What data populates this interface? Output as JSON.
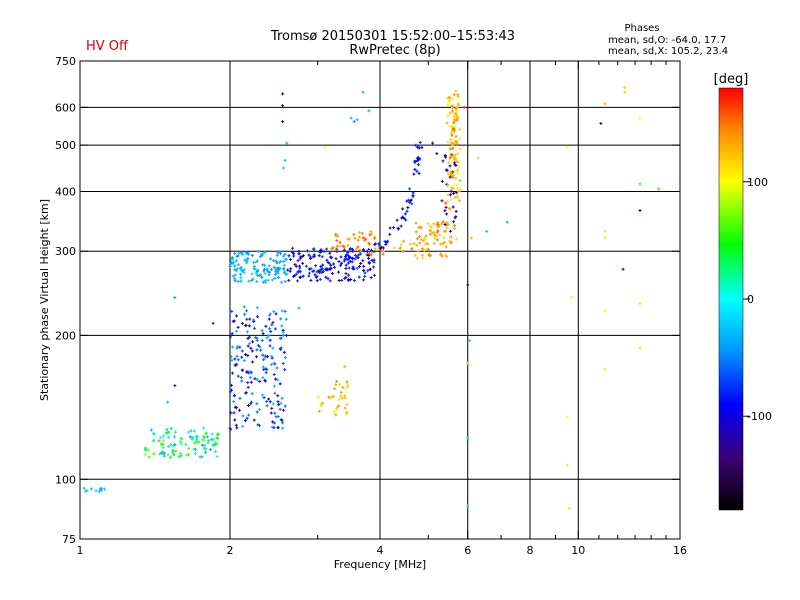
{
  "header": {
    "hv_status": "HV Off",
    "hv_color": "#e00000",
    "title_line1": "Tromsø 20150301 15:52:00–15:53:43",
    "title_line2": "RwPretec (8p)",
    "stats_heading": "Phases",
    "stats_line1": "mean, sd,O: -64.0, 17.7",
    "stats_line2": "mean, sd,X: 105.2, 23.4"
  },
  "colorbar": {
    "label": "[deg]",
    "range": [
      -180,
      180
    ],
    "ticks": [
      {
        "value": 100,
        "label": "100"
      },
      {
        "value": 0,
        "label": "0"
      },
      {
        "value": -100,
        "label": "-100"
      }
    ]
  },
  "chart_data": {
    "type": "scatter",
    "title": "Tromsø 20150301 15:52:00–15:53:43",
    "subtitle": "RwPretec (8p)",
    "xlabel": "Frequency [MHz]",
    "ylabel": "Stationary phase Virtual Height [km]",
    "x_scale": "log",
    "y_scale": "log",
    "xlim": [
      1,
      16
    ],
    "ylim": [
      75,
      750
    ],
    "grid": true,
    "x_ticks": [
      {
        "value": 1,
        "label": "1"
      },
      {
        "value": 2,
        "label": "2"
      },
      {
        "value": 4,
        "label": "4"
      },
      {
        "value": 6,
        "label": "6"
      },
      {
        "value": 8,
        "label": "8"
      },
      {
        "value": 10,
        "label": "10"
      },
      {
        "value": 16,
        "label": "16"
      }
    ],
    "x_minor_ticks": [
      3,
      5,
      7,
      9,
      11,
      12,
      13,
      14,
      15
    ],
    "x_gridlines": [
      2,
      4,
      6,
      8,
      10
    ],
    "y_ticks": [
      {
        "value": 75,
        "label": "75"
      },
      {
        "value": 100,
        "label": "100"
      },
      {
        "value": 200,
        "label": "200"
      },
      {
        "value": 300,
        "label": "300"
      },
      {
        "value": 400,
        "label": "400"
      },
      {
        "value": 500,
        "label": "500"
      },
      {
        "value": 600,
        "label": "600"
      },
      {
        "value": 750,
        "label": "750"
      }
    ],
    "y_gridlines": [
      100,
      200,
      300,
      400,
      500,
      600
    ],
    "color_value": "phase (deg)",
    "clusters": [
      {
        "x": [
          1.0,
          1.12
        ],
        "y": [
          94,
          96
        ],
        "phase": [
          -40,
          -20
        ],
        "n": 10
      },
      {
        "x": [
          1.35,
          1.9
        ],
        "y": [
          111,
          128
        ],
        "phase": [
          -50,
          80
        ],
        "n": 110
      },
      {
        "x": [
          2.0,
          2.6
        ],
        "y": [
          127,
          230
        ],
        "phase": [
          -110,
          -30
        ],
        "n": 200
      },
      {
        "x": [
          2.0,
          2.62
        ],
        "y": [
          258,
          300
        ],
        "phase": [
          -50,
          -20
        ],
        "n": 130
      },
      {
        "x": [
          2.62,
          3.9
        ],
        "y": [
          260,
          305
        ],
        "phase": [
          -110,
          -70
        ],
        "n": 150
      },
      {
        "x": [
          3.0,
          3.5
        ],
        "y": [
          136,
          162
        ],
        "phase": [
          100,
          150
        ],
        "n": 35
      },
      {
        "x": [
          3.2,
          4.0
        ],
        "y": [
          300,
          330
        ],
        "phase": [
          130,
          160
        ],
        "n": 40
      },
      {
        "x": [
          4.7,
          5.7
        ],
        "y": [
          290,
          345
        ],
        "phase": [
          110,
          150
        ],
        "n": 60
      },
      {
        "x": [
          5.45,
          5.8
        ],
        "y": [
          380,
          640
        ],
        "phase": [
          90,
          140
        ],
        "n": 70
      },
      {
        "x": [
          5.3,
          5.7
        ],
        "y": [
          330,
          480
        ],
        "phase": [
          -120,
          -90
        ],
        "n": 30
      }
    ],
    "curves": [
      {
        "label": "O-trace",
        "phase_range": [
          -110,
          -70
        ],
        "n": 90,
        "x": [
          2.6,
          3.0,
          3.4,
          3.8,
          4.1,
          4.4,
          4.6,
          4.75,
          4.8
        ],
        "y": [
          268,
          272,
          282,
          295,
          315,
          345,
          390,
          450,
          520
        ]
      },
      {
        "label": "X-trace",
        "phase_range": [
          110,
          160
        ],
        "n": 90,
        "x": [
          3.8,
          4.4,
          4.9,
          5.2,
          5.45,
          5.55,
          5.6,
          5.65,
          5.7
        ],
        "y": [
          300,
          305,
          315,
          330,
          360,
          420,
          480,
          560,
          640
        ]
      }
    ],
    "points": [
      {
        "x": 2.55,
        "y": 640,
        "phase": -110
      },
      {
        "x": 2.55,
        "y": 605,
        "phase": -110
      },
      {
        "x": 2.55,
        "y": 560,
        "phase": -110
      },
      {
        "x": 2.6,
        "y": 505,
        "phase": -30
      },
      {
        "x": 2.58,
        "y": 465,
        "phase": -30
      },
      {
        "x": 2.56,
        "y": 448,
        "phase": -20
      },
      {
        "x": 3.5,
        "y": 570,
        "phase": -30
      },
      {
        "x": 3.6,
        "y": 565,
        "phase": -30
      },
      {
        "x": 3.55,
        "y": 560,
        "phase": -50
      },
      {
        "x": 3.8,
        "y": 590,
        "phase": -30
      },
      {
        "x": 3.7,
        "y": 645,
        "phase": -30
      },
      {
        "x": 3.1,
        "y": 495,
        "phase": 100
      },
      {
        "x": 1.55,
        "y": 240,
        "phase": -40
      },
      {
        "x": 1.85,
        "y": 212,
        "phase": -80
      },
      {
        "x": 1.55,
        "y": 157,
        "phase": -80
      },
      {
        "x": 1.5,
        "y": 145,
        "phase": -30
      },
      {
        "x": 2.75,
        "y": 228,
        "phase": -40
      },
      {
        "x": 3.4,
        "y": 172,
        "phase": 130
      },
      {
        "x": 3.7,
        "y": 320,
        "phase": 160
      },
      {
        "x": 5.1,
        "y": 505,
        "phase": -120
      },
      {
        "x": 5.2,
        "y": 480,
        "phase": -130
      },
      {
        "x": 5.9,
        "y": 600,
        "phase": 170
      },
      {
        "x": 6.0,
        "y": 255,
        "phase": -110
      },
      {
        "x": 6.1,
        "y": 320,
        "phase": 130
      },
      {
        "x": 6.05,
        "y": 195,
        "phase": 50
      },
      {
        "x": 6.0,
        "y": 175,
        "phase": 80
      },
      {
        "x": 6.0,
        "y": 122,
        "phase": 40
      },
      {
        "x": 6.0,
        "y": 88,
        "phase": 30
      },
      {
        "x": 6.3,
        "y": 470,
        "phase": 110
      },
      {
        "x": 6.55,
        "y": 330,
        "phase": -30
      },
      {
        "x": 7.2,
        "y": 345,
        "phase": -30
      },
      {
        "x": 9.5,
        "y": 495,
        "phase": 100
      },
      {
        "x": 9.7,
        "y": 240,
        "phase": 100
      },
      {
        "x": 9.5,
        "y": 135,
        "phase": 100
      },
      {
        "x": 9.5,
        "y": 107,
        "phase": 110
      },
      {
        "x": 9.6,
        "y": 87,
        "phase": 110
      },
      {
        "x": 11.1,
        "y": 555,
        "phase": -120
      },
      {
        "x": 11.3,
        "y": 610,
        "phase": 130
      },
      {
        "x": 11.3,
        "y": 330,
        "phase": 110
      },
      {
        "x": 11.3,
        "y": 320,
        "phase": 110
      },
      {
        "x": 11.3,
        "y": 225,
        "phase": 100
      },
      {
        "x": 11.3,
        "y": 170,
        "phase": 110
      },
      {
        "x": 12.4,
        "y": 660,
        "phase": 120
      },
      {
        "x": 12.4,
        "y": 645,
        "phase": 120
      },
      {
        "x": 12.3,
        "y": 275,
        "phase": -120
      },
      {
        "x": 13.3,
        "y": 570,
        "phase": 100
      },
      {
        "x": 13.3,
        "y": 415,
        "phase": 50
      },
      {
        "x": 13.3,
        "y": 365,
        "phase": -120
      },
      {
        "x": 13.3,
        "y": 233,
        "phase": 110
      },
      {
        "x": 13.3,
        "y": 188,
        "phase": 120
      },
      {
        "x": 14.5,
        "y": 405,
        "phase": 40
      }
    ]
  }
}
